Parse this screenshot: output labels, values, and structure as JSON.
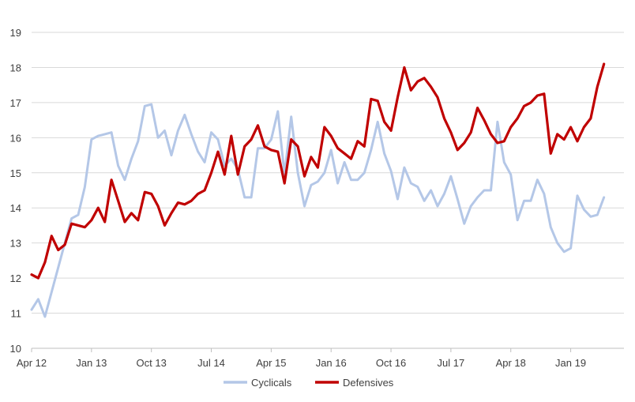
{
  "chart_data": {
    "type": "line",
    "title": "",
    "xlabel": "",
    "ylabel": "",
    "ylim": [
      10,
      19
    ],
    "yticks": [
      10,
      11,
      12,
      13,
      14,
      15,
      16,
      17,
      18,
      19
    ],
    "x_tick_labels": [
      "Apr 12",
      "Jan 13",
      "Oct 13",
      "Jul 14",
      "Apr 15",
      "Jan 16",
      "Oct 16",
      "Jul 17",
      "Apr 18",
      "Jan 19"
    ],
    "x_tick_months": [
      0,
      9,
      18,
      27,
      36,
      45,
      54,
      63,
      72,
      81
    ],
    "x_range_months": [
      0,
      89
    ],
    "x_start": "Apr 12",
    "grid": "horizontal",
    "legend_position": "bottom",
    "series": [
      {
        "name": "Cyclicals",
        "color": "#b4c7e7",
        "values": [
          11.1,
          11.4,
          10.9,
          11.6,
          12.3,
          13.0,
          13.7,
          13.8,
          14.6,
          15.95,
          16.05,
          16.1,
          16.15,
          15.2,
          14.8,
          15.4,
          15.9,
          16.9,
          16.95,
          16.0,
          16.2,
          15.5,
          16.2,
          16.65,
          16.1,
          15.6,
          15.3,
          16.15,
          15.95,
          15.2,
          15.4,
          15.1,
          14.3,
          14.3,
          15.7,
          15.7,
          15.95,
          16.75,
          14.95,
          16.6,
          15.0,
          14.05,
          14.65,
          14.75,
          15.0,
          15.65,
          14.7,
          15.3,
          14.8,
          14.8,
          15.0,
          15.65,
          16.45,
          15.55,
          15.05,
          14.25,
          15.15,
          14.7,
          14.6,
          14.2,
          14.5,
          14.05,
          14.4,
          14.9,
          14.25,
          13.55,
          14.05,
          14.3,
          14.5,
          14.5,
          16.45,
          15.3,
          14.95,
          13.65,
          14.2,
          14.2,
          14.8,
          14.4,
          13.45,
          13.0,
          12.75,
          12.85,
          14.35,
          13.95,
          13.75,
          13.8,
          14.3
        ]
      },
      {
        "name": "Defensives",
        "color": "#c00000",
        "values": [
          12.1,
          12.0,
          12.45,
          13.2,
          12.8,
          12.95,
          13.55,
          13.5,
          13.45,
          13.65,
          14.0,
          13.6,
          14.8,
          14.2,
          13.6,
          13.85,
          13.65,
          14.45,
          14.4,
          14.05,
          13.5,
          13.85,
          14.15,
          14.1,
          14.2,
          14.4,
          14.5,
          15.0,
          15.6,
          14.95,
          16.05,
          14.95,
          15.75,
          15.95,
          16.35,
          15.75,
          15.65,
          15.6,
          14.7,
          15.95,
          15.75,
          14.9,
          15.45,
          15.15,
          16.3,
          16.05,
          15.7,
          15.55,
          15.4,
          15.9,
          15.75,
          17.1,
          17.05,
          16.45,
          16.2,
          17.15,
          18.0,
          17.35,
          17.6,
          17.7,
          17.45,
          17.15,
          16.55,
          16.15,
          15.65,
          15.85,
          16.15,
          16.85,
          16.5,
          16.1,
          15.85,
          15.9,
          16.3,
          16.55,
          16.9,
          17.0,
          17.2,
          17.25,
          15.55,
          16.1,
          15.95,
          16.3,
          15.9,
          16.3,
          16.55,
          17.45,
          18.1
        ]
      }
    ]
  }
}
